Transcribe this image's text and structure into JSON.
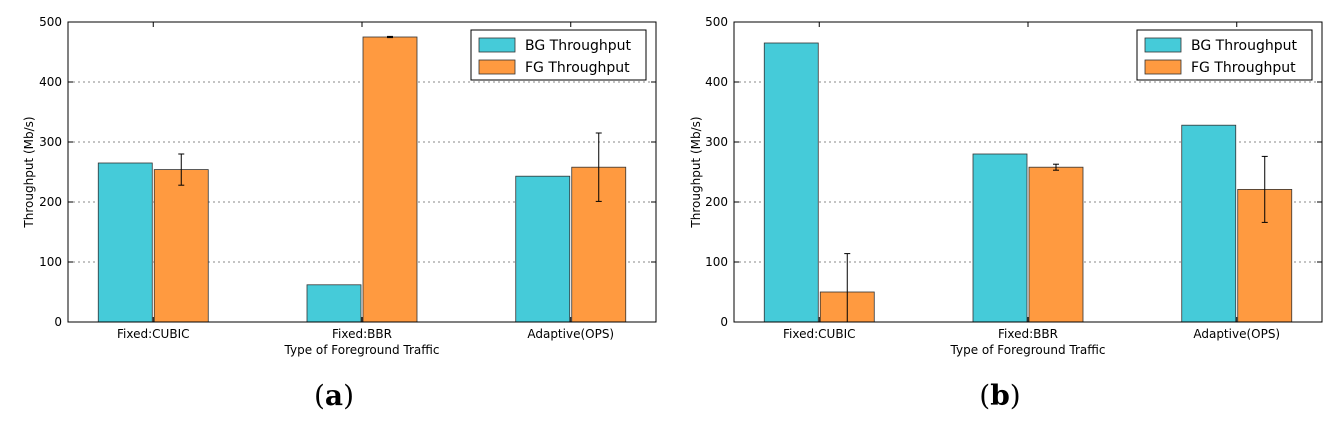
{
  "colors": {
    "bg": "#45cbd9",
    "fg": "#ff9a40",
    "edge": "#333333"
  },
  "chart_data": [
    {
      "type": "bar",
      "panel_label": "a",
      "categories": [
        "Fixed:CUBIC",
        "Fixed:BBR",
        "Adaptive(OPS)"
      ],
      "series": [
        {
          "name": "BG Throughput",
          "values": [
            265,
            62,
            243
          ]
        },
        {
          "name": "FG Throughput",
          "values": [
            254,
            475,
            258
          ],
          "errors": [
            26,
            1,
            57
          ]
        }
      ],
      "xlabel": "Type of Foreground Traffic",
      "ylabel": "Throughput (Mb/s)",
      "ylim": [
        0,
        500
      ],
      "yticks": [
        "0",
        "100",
        "200",
        "300",
        "400",
        "500"
      ],
      "grid": true,
      "legend": "top-right"
    },
    {
      "type": "bar",
      "panel_label": "b",
      "categories": [
        "Fixed:CUBIC",
        "Fixed:BBR",
        "Adaptive(OPS)"
      ],
      "series": [
        {
          "name": "BG Throughput",
          "values": [
            465,
            280,
            328
          ]
        },
        {
          "name": "FG Throughput",
          "values": [
            50,
            258,
            221
          ],
          "errors": [
            64,
            5,
            55
          ]
        }
      ],
      "xlabel": "Type of Foreground Traffic",
      "ylabel": "Throughput (Mb/s)",
      "ylim": [
        0,
        500
      ],
      "yticks": [
        "0",
        "100",
        "200",
        "300",
        "400",
        "500"
      ],
      "grid": true,
      "legend": "top-right"
    }
  ]
}
